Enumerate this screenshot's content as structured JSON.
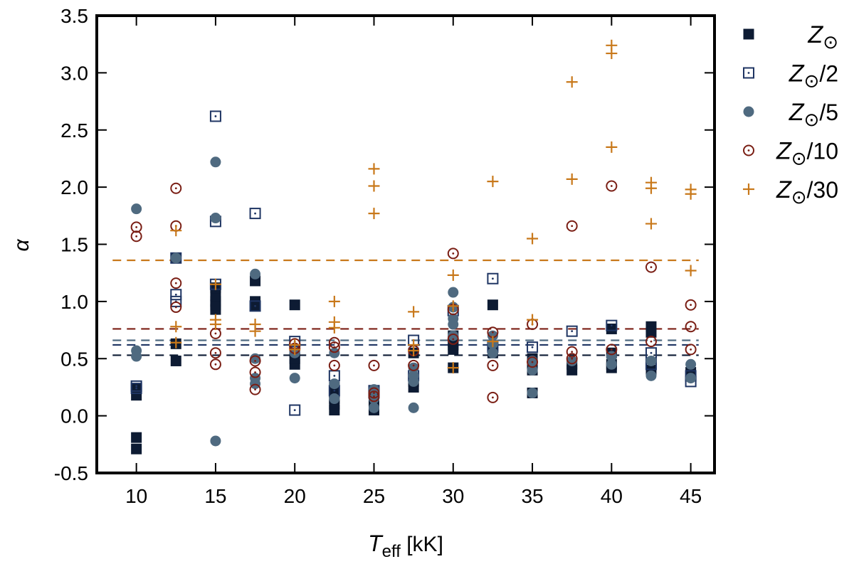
{
  "chart_data": {
    "type": "scatter",
    "xlabel": {
      "main": "T",
      "sub": "eff",
      "unit": " [kK]"
    },
    "ylabel": "α",
    "xlim": [
      7.5,
      46.5
    ],
    "ylim": [
      -0.5,
      3.5
    ],
    "xticks": [
      "10",
      "15",
      "20",
      "25",
      "30",
      "35",
      "40",
      "45"
    ],
    "yticks": [
      "-0.5",
      "0.0",
      "0.5",
      "1.0",
      "1.5",
      "2.0",
      "2.5",
      "3.0",
      "3.5"
    ],
    "legend_position": "right-outside",
    "series": [
      {
        "name": "Z_sun",
        "label_main": "Z",
        "label_suffix": "",
        "marker": "filled-square",
        "color": "#0d1b33",
        "mean": 0.53,
        "points": [
          [
            10,
            0.18
          ],
          [
            10,
            -0.19
          ],
          [
            10,
            -0.29
          ],
          [
            10,
            0.24
          ],
          [
            12.5,
            0.48
          ],
          [
            12.5,
            0.63
          ],
          [
            12.5,
            1.38
          ],
          [
            15,
            1.0
          ],
          [
            15,
            0.93
          ],
          [
            15,
            0.97
          ],
          [
            15,
            1.05
          ],
          [
            15,
            1.12
          ],
          [
            17.5,
            1.18
          ],
          [
            17.5,
            1.0
          ],
          [
            17.5,
            0.96
          ],
          [
            20,
            0.97
          ],
          [
            20,
            0.45
          ],
          [
            20,
            0.5
          ],
          [
            20,
            0.55
          ],
          [
            22.5,
            0.05
          ],
          [
            22.5,
            0.1
          ],
          [
            22.5,
            0.15
          ],
          [
            22.5,
            0.2
          ],
          [
            22.5,
            0.25
          ],
          [
            25,
            0.05
          ],
          [
            25,
            0.14
          ],
          [
            25,
            0.2
          ],
          [
            27.5,
            0.25
          ],
          [
            27.5,
            0.3
          ],
          [
            27.5,
            0.55
          ],
          [
            30,
            0.42
          ],
          [
            30,
            0.58
          ],
          [
            30,
            0.62
          ],
          [
            30,
            0.65
          ],
          [
            30,
            0.7
          ],
          [
            32.5,
            0.97
          ],
          [
            32.5,
            0.55
          ],
          [
            32.5,
            0.6
          ],
          [
            35,
            0.2
          ],
          [
            35,
            0.4
          ],
          [
            35,
            0.45
          ],
          [
            35,
            0.5
          ],
          [
            37.5,
            0.4
          ],
          [
            37.5,
            0.45
          ],
          [
            40,
            0.42
          ],
          [
            40,
            0.45
          ],
          [
            40,
            0.76
          ],
          [
            40,
            0.55
          ],
          [
            42.5,
            0.78
          ],
          [
            42.5,
            0.73
          ],
          [
            42.5,
            0.4
          ],
          [
            45,
            0.35
          ],
          [
            45,
            0.38
          ]
        ]
      },
      {
        "name": "Z_sun/2",
        "label_main": "Z",
        "label_suffix": "/2",
        "marker": "open-square-dot",
        "color": "#1f3563",
        "mean": 0.62,
        "points": [
          [
            10,
            0.24
          ],
          [
            10,
            0.26
          ],
          [
            12.5,
            1.38
          ],
          [
            12.5,
            1.06
          ],
          [
            12.5,
            1.0
          ],
          [
            15,
            2.62
          ],
          [
            15,
            1.7
          ],
          [
            15,
            1.15
          ],
          [
            17.5,
            1.77
          ],
          [
            17.5,
            0.96
          ],
          [
            20,
            0.05
          ],
          [
            20,
            0.65
          ],
          [
            22.5,
            0.35
          ],
          [
            22.5,
            0.22
          ],
          [
            25,
            0.22
          ],
          [
            25,
            0.2
          ],
          [
            27.5,
            0.66
          ],
          [
            27.5,
            0.35
          ],
          [
            30,
            0.92
          ],
          [
            32.5,
            1.2
          ],
          [
            32.5,
            0.6
          ],
          [
            35,
            0.6
          ],
          [
            37.5,
            0.74
          ],
          [
            40,
            0.79
          ],
          [
            42.5,
            0.55
          ],
          [
            42.5,
            0.45
          ],
          [
            45,
            0.3
          ],
          [
            45,
            0.35
          ]
        ]
      },
      {
        "name": "Z_sun/5",
        "label_main": "Z",
        "label_suffix": "/5",
        "marker": "filled-circle",
        "color": "#4f6a80",
        "mean": 0.66,
        "points": [
          [
            10,
            1.81
          ],
          [
            10,
            0.57
          ],
          [
            10,
            0.52
          ],
          [
            12.5,
            1.38
          ],
          [
            15,
            2.22
          ],
          [
            15,
            1.73
          ],
          [
            15,
            -0.22
          ],
          [
            17.5,
            1.24
          ],
          [
            17.5,
            0.5
          ],
          [
            17.5,
            0.33
          ],
          [
            17.5,
            0.28
          ],
          [
            20,
            0.55
          ],
          [
            20,
            0.33
          ],
          [
            22.5,
            0.55
          ],
          [
            22.5,
            0.28
          ],
          [
            22.5,
            0.15
          ],
          [
            25,
            0.23
          ],
          [
            25,
            0.15
          ],
          [
            25,
            0.07
          ],
          [
            27.5,
            0.42
          ],
          [
            27.5,
            0.35
          ],
          [
            27.5,
            0.3
          ],
          [
            27.5,
            0.07
          ],
          [
            30,
            1.08
          ],
          [
            30,
            0.95
          ],
          [
            30,
            0.85
          ],
          [
            30,
            0.8
          ],
          [
            30,
            0.7
          ],
          [
            32.5,
            0.7
          ],
          [
            32.5,
            0.63
          ],
          [
            32.5,
            0.55
          ],
          [
            35,
            0.48
          ],
          [
            35,
            0.4
          ],
          [
            35,
            0.2
          ],
          [
            37.5,
            0.48
          ],
          [
            40,
            0.52
          ],
          [
            40,
            0.45
          ],
          [
            42.5,
            0.48
          ],
          [
            42.5,
            0.35
          ],
          [
            45,
            0.45
          ],
          [
            45,
            0.33
          ]
        ]
      },
      {
        "name": "Z_sun/10",
        "label_main": "Z",
        "label_suffix": "/10",
        "marker": "open-circle-dot",
        "color": "#7a1e14",
        "mean": 0.76,
        "points": [
          [
            10,
            1.65
          ],
          [
            10,
            1.57
          ],
          [
            12.5,
            1.99
          ],
          [
            12.5,
            1.66
          ],
          [
            12.5,
            1.16
          ],
          [
            12.5,
            0.95
          ],
          [
            15,
            0.72
          ],
          [
            15,
            0.55
          ],
          [
            15,
            0.45
          ],
          [
            17.5,
            0.48
          ],
          [
            17.5,
            0.38
          ],
          [
            17.5,
            0.23
          ],
          [
            20,
            0.63
          ],
          [
            20,
            0.59
          ],
          [
            22.5,
            0.64
          ],
          [
            22.5,
            0.6
          ],
          [
            22.5,
            0.44
          ],
          [
            25,
            0.44
          ],
          [
            25,
            0.2
          ],
          [
            25,
            0.17
          ],
          [
            27.5,
            0.57
          ],
          [
            27.5,
            0.44
          ],
          [
            30,
            1.42
          ],
          [
            30,
            0.93
          ],
          [
            30,
            0.67
          ],
          [
            32.5,
            0.73
          ],
          [
            32.5,
            0.44
          ],
          [
            32.5,
            0.16
          ],
          [
            35,
            0.8
          ],
          [
            35,
            0.47
          ],
          [
            37.5,
            1.66
          ],
          [
            37.5,
            0.56
          ],
          [
            37.5,
            0.5
          ],
          [
            40,
            2.01
          ],
          [
            40,
            0.58
          ],
          [
            42.5,
            1.3
          ],
          [
            42.5,
            0.65
          ],
          [
            45,
            0.97
          ],
          [
            45,
            0.78
          ],
          [
            45,
            0.58
          ]
        ]
      },
      {
        "name": "Z_sun/30",
        "label_main": "Z",
        "label_suffix": "/30",
        "marker": "plus",
        "color": "#c8781a",
        "mean": 1.36,
        "points": [
          [
            12.5,
            1.62
          ],
          [
            12.5,
            0.78
          ],
          [
            12.5,
            0.64
          ],
          [
            15,
            1.15
          ],
          [
            15,
            0.84
          ],
          [
            15,
            0.8
          ],
          [
            17.5,
            0.8
          ],
          [
            17.5,
            0.74
          ],
          [
            20,
            0.62
          ],
          [
            20,
            0.58
          ],
          [
            22.5,
            1.0
          ],
          [
            22.5,
            0.82
          ],
          [
            22.5,
            0.77
          ],
          [
            25,
            2.16
          ],
          [
            25,
            2.01
          ],
          [
            25,
            1.77
          ],
          [
            27.5,
            0.91
          ],
          [
            27.5,
            0.62
          ],
          [
            27.5,
            0.57
          ],
          [
            30,
            1.23
          ],
          [
            30,
            0.96
          ],
          [
            30,
            0.42
          ],
          [
            32.5,
            2.05
          ],
          [
            32.5,
            0.65
          ],
          [
            35,
            1.55
          ],
          [
            35,
            0.84
          ],
          [
            37.5,
            2.92
          ],
          [
            37.5,
            2.07
          ],
          [
            40,
            3.24
          ],
          [
            40,
            3.17
          ],
          [
            40,
            2.35
          ],
          [
            42.5,
            2.04
          ],
          [
            42.5,
            1.99
          ],
          [
            42.5,
            1.68
          ],
          [
            45,
            1.98
          ],
          [
            45,
            1.94
          ],
          [
            45,
            1.27
          ]
        ]
      }
    ]
  }
}
